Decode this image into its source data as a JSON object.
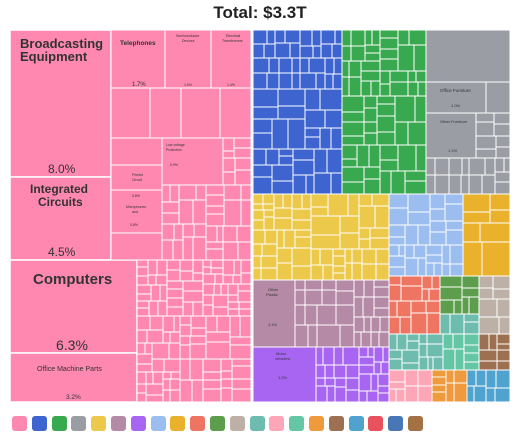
{
  "chart_data": {
    "type": "treemap",
    "title": "Total: $3.3T",
    "series_colors": [
      "#fe88b0",
      "#3d64cf",
      "#38a94f",
      "#9b9da4",
      "#ecc94b",
      "#b58aa6",
      "#a865f2",
      "#9bbdef",
      "#eab22c",
      "#ef7563",
      "#5c9e4b",
      "#bdb1a7",
      "#6dbcae",
      "#fca6b8",
      "#64c6a5",
      "#ee9a3d",
      "#9c7050",
      "#4fa3ce",
      "#e8525e",
      "#4876b7",
      "#a47142"
    ],
    "labeled_items": [
      {
        "name": "Broadcasting Equipment",
        "share": "8.0%"
      },
      {
        "name": "Integrated Circuits",
        "share": "4.5%"
      },
      {
        "name": "Computers",
        "share": "6.3%"
      },
      {
        "name": "Office Machine Parts",
        "share": "3.2%"
      },
      {
        "name": "Telephones",
        "share": "1.7%"
      },
      {
        "name": "Semiconductor Devices",
        "share": "1.5%"
      },
      {
        "name": "Electrical Transformers",
        "share": "1.4%"
      },
      {
        "name": "Low-voltage Protection Equipment",
        "share": "0.9%"
      },
      {
        "name": "Printed Circuit Boards",
        "share": "0.8%"
      },
      {
        "name": "Microphones and Headphones",
        "share": "0.8%"
      },
      {
        "name": "Office Furniture",
        "share": "1.0%"
      },
      {
        "name": "Other Furniture",
        "share": "1.1%"
      },
      {
        "name": "Other Plastic Products",
        "share": "1.1%"
      },
      {
        "name": "Motor vehicles; parts and accessories",
        "share": "1.2%"
      }
    ]
  }
}
